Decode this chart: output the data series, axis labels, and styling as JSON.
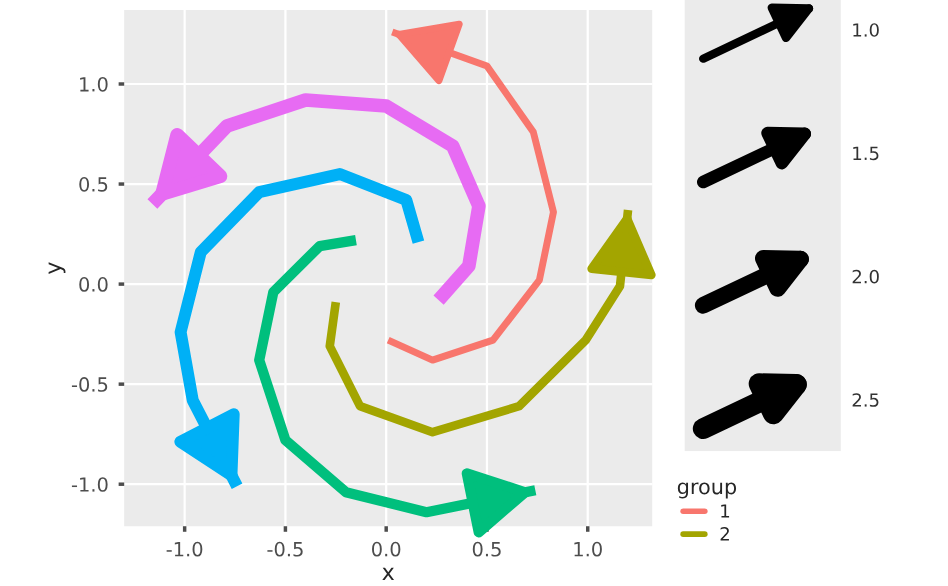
{
  "chart_data": {
    "type": "line",
    "xlabel": "x",
    "ylabel": "y",
    "xlim": [
      -1.3,
      1.32
    ],
    "ylim": [
      -1.21,
      1.37
    ],
    "xticks": [
      {
        "value": -1,
        "label": "-1.0"
      },
      {
        "value": -0.5,
        "label": "-0.5"
      },
      {
        "value": 0,
        "label": "0.0"
      },
      {
        "value": 0.5,
        "label": "0.5"
      },
      {
        "value": 1,
        "label": "1.0"
      }
    ],
    "yticks": [
      {
        "value": -1,
        "label": "-1.0"
      },
      {
        "value": -0.5,
        "label": "-0.5"
      },
      {
        "value": 0,
        "label": "0.0"
      },
      {
        "value": 0.5,
        "label": "0.5"
      },
      {
        "value": 1,
        "label": "1.0"
      }
    ],
    "grid": true,
    "legend": "right",
    "legend_title": "group",
    "marker": "none",
    "line_style": "solid",
    "annotations": [
      "1.0",
      "1.5",
      "2.0",
      "2.5"
    ],
    "series": [
      {
        "name": "1",
        "color": "#F8766D",
        "x": [
          0.01,
          0.23,
          0.53,
          0.76,
          0.83,
          0.73,
          0.5,
          0.03
        ],
        "values": [
          -0.28,
          -0.38,
          -0.28,
          0.02,
          0.36,
          0.76,
          1.09,
          1.26
        ]
      },
      {
        "name": "2",
        "color": "#A3A500",
        "x": [
          -0.25,
          -0.28,
          -0.13,
          0.23,
          0.66,
          0.99,
          1.16,
          1.2
        ],
        "values": [
          -0.09,
          -0.31,
          -0.61,
          -0.74,
          -0.61,
          -0.28,
          -0.01,
          0.37
        ]
      },
      {
        "color": "#00BF7D",
        "x": [
          -0.15,
          -0.33,
          -0.56,
          -0.63,
          -0.5,
          -0.2,
          0.2,
          0.74
        ],
        "values": [
          0.22,
          0.19,
          -0.04,
          -0.38,
          -0.78,
          -1.04,
          -1.14,
          -1.03
        ]
      },
      {
        "color": "#00B0F6",
        "x": [
          0.16,
          0.1,
          -0.23,
          -0.63,
          -0.92,
          -1.02,
          -0.96,
          -0.74
        ],
        "values": [
          0.21,
          0.42,
          0.55,
          0.46,
          0.16,
          -0.24,
          -0.58,
          -1.01
        ]
      },
      {
        "color": "#E76BF3",
        "x": [
          0.26,
          0.41,
          0.46,
          0.33,
          0.0,
          -0.4,
          -0.79,
          -1.16
        ],
        "values": [
          -0.08,
          0.09,
          0.39,
          0.69,
          0.89,
          0.92,
          0.79,
          0.4
        ]
      }
    ]
  }
}
